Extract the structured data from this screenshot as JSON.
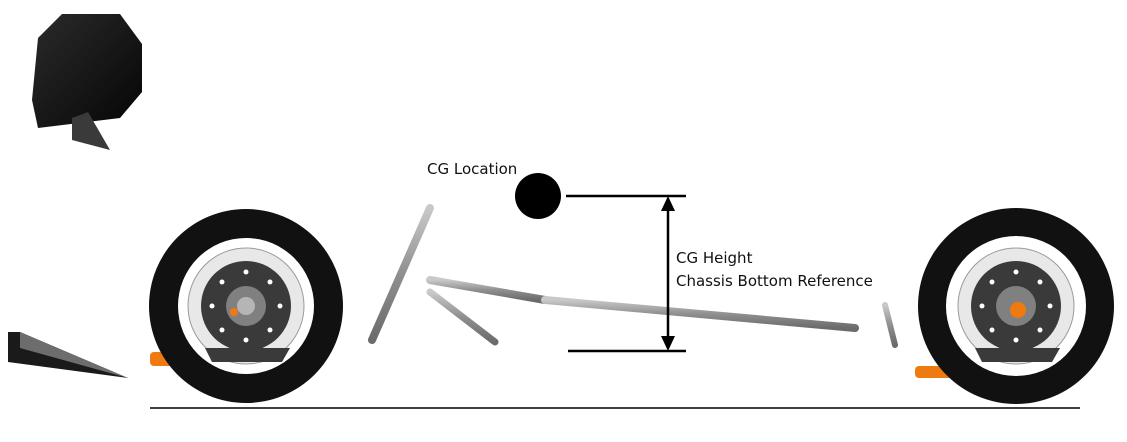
{
  "labels": {
    "cg_location": "CG Location",
    "cg_height": "CG Height",
    "chassis_reference": "Chassis Bottom Reference"
  },
  "colors": {
    "tire": "#111111",
    "rotor": "#3a3a3a",
    "chassis_tube": "#9a9a9a",
    "accent": "#f07a12",
    "cg_marker": "#000000",
    "ground_line": "#000000"
  },
  "icons": {
    "front_wheel": "wheel-icon",
    "rear_wheel": "wheel-icon",
    "cg_marker": "filled-circle-icon",
    "dimension_arrow": "double-arrow-icon"
  }
}
